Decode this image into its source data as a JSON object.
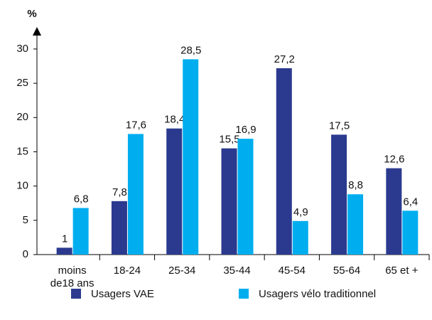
{
  "chart_data": {
    "type": "bar",
    "y_label": "%",
    "categories": [
      "moins de18 ans",
      "18-24",
      "25-34",
      "35-44",
      "45-54",
      "55-64",
      "65 et +"
    ],
    "series": [
      {
        "name": "Usagers VAE",
        "color": "#2b3a8f",
        "values": [
          1,
          7.8,
          18.4,
          15.5,
          27.2,
          17.5,
          12.6
        ],
        "value_labels": [
          "1",
          "7,8",
          "18,4",
          "15,5",
          "27,2",
          "17,5",
          "12,6"
        ]
      },
      {
        "name": "Usagers vélo traditionnel",
        "color": "#00aeef",
        "values": [
          6.8,
          17.6,
          28.5,
          16.9,
          4.9,
          8.8,
          6.4
        ],
        "value_labels": [
          "6,8",
          "17,6",
          "28,5",
          "16,9",
          "4,9",
          "8,8",
          "6,4"
        ]
      }
    ],
    "ylim": [
      0,
      33
    ],
    "yticks": [
      0,
      5,
      10,
      15,
      20,
      25,
      30
    ]
  }
}
